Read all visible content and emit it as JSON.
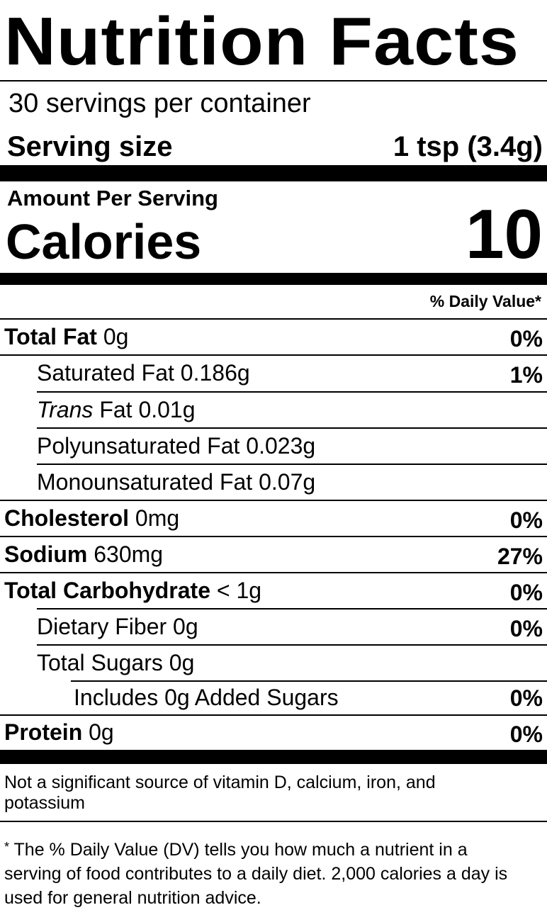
{
  "label": {
    "title": "Nutrition Facts",
    "servings_per_container": "30 servings per container",
    "serving_size_label": "Serving size",
    "serving_size_value": "1 tsp (3.4g)",
    "amount_per_serving": "Amount Per Serving",
    "calories_label": "Calories",
    "calories_value": "10",
    "daily_value_header": "% Daily Value*"
  },
  "nutrients": [
    {
      "name": "Total Fat",
      "amount": "0g",
      "dv": "0%"
    },
    {
      "name": "Saturated Fat",
      "amount": "0.186g",
      "dv": "1%"
    },
    {
      "name_italic": "Trans",
      "name": "Fat",
      "amount": "0.01g",
      "dv": ""
    },
    {
      "name": "Polyunsaturated Fat",
      "amount": "0.023g",
      "dv": ""
    },
    {
      "name": "Monounsaturated Fat",
      "amount": "0.07g",
      "dv": ""
    },
    {
      "name": "Cholesterol",
      "amount": "0mg",
      "dv": "0%"
    },
    {
      "name": "Sodium",
      "amount": "630mg",
      "dv": "27%"
    },
    {
      "name": "Total Carbohydrate",
      "amount": "< 1g",
      "dv": "0%"
    },
    {
      "name": "Dietary Fiber",
      "amount": "0g",
      "dv": "0%"
    },
    {
      "name": "Total Sugars",
      "amount": "0g",
      "dv": ""
    },
    {
      "name": "Includes 0g Added Sugars",
      "amount": "",
      "dv": "0%"
    },
    {
      "name": "Protein",
      "amount": "0g",
      "dv": "0%"
    }
  ],
  "footnotes": {
    "not_significant": "Not a significant source of vitamin D, calcium, iron, and potassium",
    "asterisk": "*",
    "daily_value_note": "The % Daily Value (DV) tells you how much a nutrient in a serving of food contributes to a daily diet. 2,000 calories a day is used for general nutrition advice."
  }
}
